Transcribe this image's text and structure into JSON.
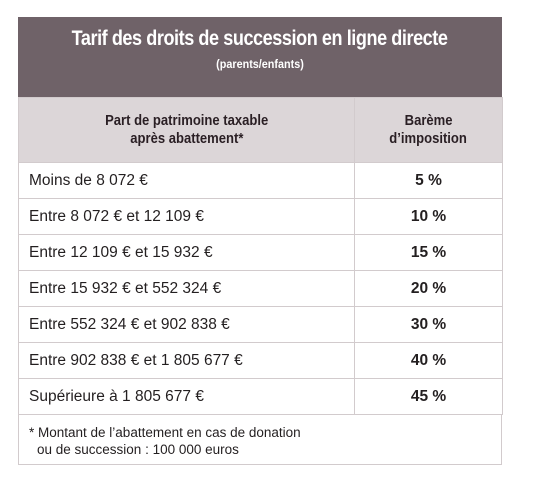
{
  "header": {
    "title": "Tarif des droits de succession en ligne directe",
    "subtitle": "(parents/enfants)"
  },
  "table": {
    "columns": [
      "Part de patrimoine taxable\naprès abattement*",
      "Barème\nd’imposition"
    ],
    "col1_line1": "Part de patrimoine taxable",
    "col1_line2": "après abattement*",
    "col2_line1": "Barème",
    "col2_line2": "d’imposition",
    "rows": [
      {
        "range": "Moins de 8 072 €",
        "rate": "5 %"
      },
      {
        "range": "Entre 8 072 € et 12 109 €",
        "rate": "10 %"
      },
      {
        "range": "Entre 12 109 € et 15 932 €",
        "rate": "15 %"
      },
      {
        "range": "Entre 15 932 € et 552 324 €",
        "rate": "20 %"
      },
      {
        "range": "Entre 552 324 € et 902 838 €",
        "rate": "30 %"
      },
      {
        "range": "Entre 902 838 € et 1 805 677 €",
        "rate": "40 %"
      },
      {
        "range": "Supérieure à 1 805 677 €",
        "rate": "45 %"
      }
    ]
  },
  "footnote": {
    "line1": "* Montant de l’abattement en cas de donation",
    "line2": "ou de succession : 100 000 euros"
  },
  "colors": {
    "title_bg": "#6f6268",
    "header_bg": "#dcd6d8",
    "border": "#d2cbcd"
  }
}
